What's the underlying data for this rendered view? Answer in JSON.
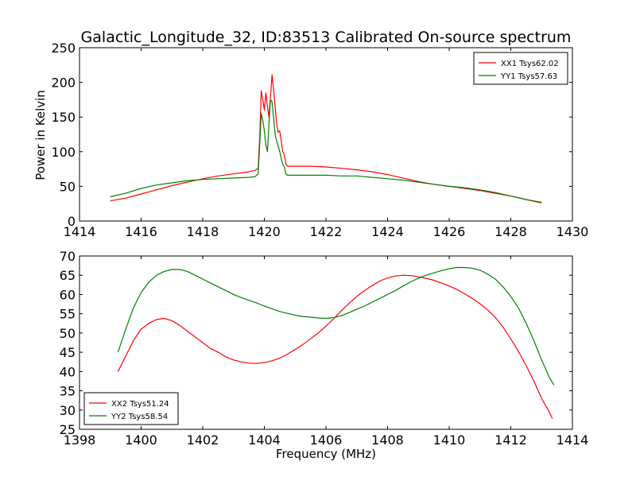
{
  "figure": {
    "title": "Galactic_Longitude_32, ID:83513 Calibrated On-source spectrum",
    "xlabel": "Frequency (MHz)"
  },
  "chart_data": [
    {
      "type": "line",
      "ylabel": "Power in Kelvin",
      "xlim": [
        1414,
        1430
      ],
      "ylim": [
        0,
        250
      ],
      "xticks": [
        1414,
        1416,
        1418,
        1420,
        1422,
        1424,
        1426,
        1428,
        1430
      ],
      "yticks": [
        0,
        50,
        100,
        150,
        200,
        250
      ],
      "grid": false,
      "legend_position": "upper right",
      "series": [
        {
          "name": "XX1 Tsys62.02",
          "color": "#ff0000",
          "points": [
            [
              1415.0,
              29
            ],
            [
              1415.5,
              33
            ],
            [
              1416.0,
              39
            ],
            [
              1416.5,
              45
            ],
            [
              1417.0,
              51
            ],
            [
              1417.5,
              56
            ],
            [
              1418.0,
              61
            ],
            [
              1418.5,
              65
            ],
            [
              1419.0,
              68
            ],
            [
              1419.5,
              71
            ],
            [
              1419.7,
              73
            ],
            [
              1419.8,
              76
            ],
            [
              1419.85,
              120
            ],
            [
              1419.9,
              188
            ],
            [
              1419.95,
              175
            ],
            [
              1420.0,
              160
            ],
            [
              1420.05,
              185
            ],
            [
              1420.1,
              165
            ],
            [
              1420.15,
              150
            ],
            [
              1420.2,
              180
            ],
            [
              1420.25,
              211
            ],
            [
              1420.3,
              190
            ],
            [
              1420.35,
              165
            ],
            [
              1420.4,
              140
            ],
            [
              1420.45,
              128
            ],
            [
              1420.5,
              130
            ],
            [
              1420.55,
              115
            ],
            [
              1420.6,
              100
            ],
            [
              1420.65,
              95
            ],
            [
              1420.7,
              82
            ],
            [
              1420.75,
              79
            ],
            [
              1421.0,
              79
            ],
            [
              1421.5,
              79
            ],
            [
              1422.0,
              78
            ],
            [
              1422.5,
              76
            ],
            [
              1423.0,
              74
            ],
            [
              1423.5,
              71
            ],
            [
              1424.0,
              67
            ],
            [
              1424.5,
              62
            ],
            [
              1425.0,
              57
            ],
            [
              1425.5,
              53
            ],
            [
              1426.0,
              50
            ],
            [
              1426.5,
              47
            ],
            [
              1427.0,
              44
            ],
            [
              1427.5,
              40
            ],
            [
              1428.0,
              36
            ],
            [
              1428.5,
              31
            ],
            [
              1429.0,
              27
            ]
          ]
        },
        {
          "name": "YY1 Tsys57.63",
          "color": "#008000",
          "points": [
            [
              1415.0,
              35
            ],
            [
              1415.5,
              40
            ],
            [
              1416.0,
              47
            ],
            [
              1416.5,
              52
            ],
            [
              1417.0,
              55
            ],
            [
              1417.5,
              58
            ],
            [
              1418.0,
              60
            ],
            [
              1418.5,
              61
            ],
            [
              1419.0,
              62
            ],
            [
              1419.5,
              63
            ],
            [
              1419.7,
              64
            ],
            [
              1419.8,
              68
            ],
            [
              1419.85,
              110
            ],
            [
              1419.9,
              155
            ],
            [
              1419.95,
              145
            ],
            [
              1420.0,
              130
            ],
            [
              1420.05,
              110
            ],
            [
              1420.1,
              100
            ],
            [
              1420.15,
              140
            ],
            [
              1420.2,
              175
            ],
            [
              1420.25,
              172
            ],
            [
              1420.3,
              150
            ],
            [
              1420.35,
              125
            ],
            [
              1420.4,
              115
            ],
            [
              1420.45,
              108
            ],
            [
              1420.5,
              100
            ],
            [
              1420.55,
              90
            ],
            [
              1420.6,
              82
            ],
            [
              1420.65,
              78
            ],
            [
              1420.7,
              68
            ],
            [
              1420.75,
              66
            ],
            [
              1421.0,
              66
            ],
            [
              1421.5,
              66
            ],
            [
              1422.0,
              66
            ],
            [
              1422.5,
              65
            ],
            [
              1423.0,
              65
            ],
            [
              1423.5,
              63
            ],
            [
              1424.0,
              61
            ],
            [
              1424.5,
              59
            ],
            [
              1425.0,
              56
            ],
            [
              1425.5,
              53
            ],
            [
              1426.0,
              50
            ],
            [
              1426.5,
              48
            ],
            [
              1427.0,
              45
            ],
            [
              1427.5,
              41
            ],
            [
              1428.0,
              36
            ],
            [
              1428.5,
              31
            ],
            [
              1429.0,
              26
            ]
          ]
        }
      ]
    },
    {
      "type": "line",
      "ylabel": "",
      "xlim": [
        1398,
        1414
      ],
      "ylim": [
        25,
        70
      ],
      "xticks": [
        1398,
        1400,
        1402,
        1404,
        1406,
        1408,
        1410,
        1412,
        1414
      ],
      "yticks": [
        25,
        30,
        35,
        40,
        45,
        50,
        55,
        60,
        65,
        70
      ],
      "grid": false,
      "legend_position": "lower left",
      "series": [
        {
          "name": "XX2 Tsys51.24",
          "color": "#ff0000",
          "points": [
            [
              1399.25,
              40
            ],
            [
              1399.5,
              44
            ],
            [
              1399.75,
              48
            ],
            [
              1400.0,
              51
            ],
            [
              1400.25,
              52.5
            ],
            [
              1400.5,
              53.5
            ],
            [
              1400.75,
              53.8
            ],
            [
              1401.0,
              53.2
            ],
            [
              1401.25,
              52
            ],
            [
              1401.5,
              50.5
            ],
            [
              1401.75,
              49
            ],
            [
              1402.0,
              47.5
            ],
            [
              1402.25,
              46
            ],
            [
              1402.5,
              45
            ],
            [
              1402.75,
              43.8
            ],
            [
              1403.0,
              43
            ],
            [
              1403.25,
              42.5
            ],
            [
              1403.5,
              42.2
            ],
            [
              1403.75,
              42.1
            ],
            [
              1404.0,
              42.3
            ],
            [
              1404.25,
              42.8
            ],
            [
              1404.5,
              43.5
            ],
            [
              1404.75,
              44.5
            ],
            [
              1405.0,
              45.7
            ],
            [
              1405.25,
              47
            ],
            [
              1405.5,
              48.5
            ],
            [
              1405.75,
              50
            ],
            [
              1406.0,
              51.8
            ],
            [
              1406.25,
              53.7
            ],
            [
              1406.5,
              55.8
            ],
            [
              1406.75,
              57.7
            ],
            [
              1407.0,
              59.5
            ],
            [
              1407.25,
              61
            ],
            [
              1407.5,
              62.3
            ],
            [
              1407.75,
              63.5
            ],
            [
              1408.0,
              64.3
            ],
            [
              1408.25,
              64.8
            ],
            [
              1408.5,
              65
            ],
            [
              1408.75,
              64.9
            ],
            [
              1409.0,
              64.6
            ],
            [
              1409.25,
              64.2
            ],
            [
              1409.5,
              63.7
            ],
            [
              1409.75,
              63
            ],
            [
              1410.0,
              62.2
            ],
            [
              1410.25,
              61.3
            ],
            [
              1410.5,
              60.2
            ],
            [
              1410.75,
              59
            ],
            [
              1411.0,
              57.6
            ],
            [
              1411.25,
              56
            ],
            [
              1411.5,
              54
            ],
            [
              1411.75,
              51.5
            ],
            [
              1412.0,
              48.5
            ],
            [
              1412.25,
              45.2
            ],
            [
              1412.5,
              41.5
            ],
            [
              1412.75,
              37.5
            ],
            [
              1413.0,
              33
            ],
            [
              1413.25,
              29.5
            ],
            [
              1413.35,
              27.8
            ]
          ]
        },
        {
          "name": "YY2 Tsys58.54",
          "color": "#008000",
          "points": [
            [
              1399.25,
              45
            ],
            [
              1399.5,
              51
            ],
            [
              1399.75,
              56.5
            ],
            [
              1400.0,
              60.5
            ],
            [
              1400.25,
              63.2
            ],
            [
              1400.5,
              65
            ],
            [
              1400.75,
              66
            ],
            [
              1401.0,
              66.5
            ],
            [
              1401.25,
              66.5
            ],
            [
              1401.5,
              66
            ],
            [
              1401.75,
              65
            ],
            [
              1402.0,
              64
            ],
            [
              1402.25,
              63
            ],
            [
              1402.5,
              62
            ],
            [
              1402.75,
              61
            ],
            [
              1403.0,
              60
            ],
            [
              1403.25,
              59.2
            ],
            [
              1403.5,
              58.5
            ],
            [
              1403.75,
              57.8
            ],
            [
              1404.0,
              57
            ],
            [
              1404.25,
              56.3
            ],
            [
              1404.5,
              55.6
            ],
            [
              1404.75,
              55.1
            ],
            [
              1405.0,
              54.6
            ],
            [
              1405.25,
              54.3
            ],
            [
              1405.5,
              54.1
            ],
            [
              1405.75,
              53.9
            ],
            [
              1406.0,
              53.8
            ],
            [
              1406.25,
              54
            ],
            [
              1406.5,
              54.5
            ],
            [
              1406.75,
              55.3
            ],
            [
              1407.0,
              56.2
            ],
            [
              1407.25,
              57
            ],
            [
              1407.5,
              58
            ],
            [
              1407.75,
              59
            ],
            [
              1408.0,
              60
            ],
            [
              1408.25,
              61
            ],
            [
              1408.5,
              62.2
            ],
            [
              1408.75,
              63.3
            ],
            [
              1409.0,
              64.2
            ],
            [
              1409.25,
              65
            ],
            [
              1409.5,
              65.6
            ],
            [
              1409.75,
              66.2
            ],
            [
              1410.0,
              66.7
            ],
            [
              1410.25,
              67
            ],
            [
              1410.5,
              67
            ],
            [
              1410.75,
              66.8
            ],
            [
              1411.0,
              66.3
            ],
            [
              1411.25,
              65.3
            ],
            [
              1411.5,
              64
            ],
            [
              1411.75,
              62
            ],
            [
              1412.0,
              59.5
            ],
            [
              1412.25,
              56.5
            ],
            [
              1412.5,
              52.5
            ],
            [
              1412.75,
              48
            ],
            [
              1413.0,
              43
            ],
            [
              1413.25,
              38.5
            ],
            [
              1413.4,
              36.5
            ]
          ]
        }
      ]
    }
  ]
}
